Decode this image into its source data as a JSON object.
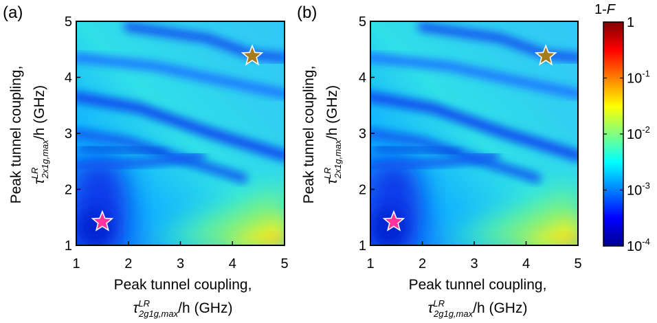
{
  "chart_data": [
    {
      "type": "heatmap",
      "panel_label": "(a)",
      "xlabel_line1": "Peak tunnel coupling,",
      "xlabel_symbol": "τ",
      "xlabel_sup": "LR",
      "xlabel_sub": "2g1g,max",
      "xlabel_tail": "/h (GHz)",
      "ylabel_line1": "Peak tunnel coupling,",
      "ylabel_symbol": "τ",
      "ylabel_sup": "LR",
      "ylabel_sub": "2x1g,max",
      "ylabel_tail": "/h (GHz)",
      "xlim": [
        1,
        5
      ],
      "ylim": [
        1,
        5
      ],
      "x_ticks": [
        "1",
        "2",
        "3",
        "4",
        "5"
      ],
      "y_ticks": [
        "1",
        "2",
        "3",
        "4",
        "5"
      ],
      "markers": [
        {
          "shape": "star",
          "color": "#ff3399",
          "x": 1.5,
          "y": 1.42
        },
        {
          "shape": "star",
          "color": "#a67c1c",
          "x": 4.38,
          "y": 4.38
        }
      ]
    },
    {
      "type": "heatmap",
      "panel_label": "(b)",
      "xlabel_line1": "Peak tunnel coupling,",
      "xlabel_symbol": "τ",
      "xlabel_sup": "LR",
      "xlabel_sub": "2g1g,max",
      "xlabel_tail": "/h (GHz)",
      "ylabel_line1": "Peak tunnel coupling,",
      "ylabel_symbol": "τ",
      "ylabel_sup": "LR",
      "ylabel_sub": "2x1g,max",
      "ylabel_tail": "/h (GHz)",
      "xlim": [
        1,
        5
      ],
      "ylim": [
        1,
        5
      ],
      "x_ticks": [
        "1",
        "2",
        "3",
        "4",
        "5"
      ],
      "y_ticks": [
        "1",
        "2",
        "3",
        "4",
        "5"
      ],
      "markers": [
        {
          "shape": "star",
          "color": "#ff3399",
          "x": 1.45,
          "y": 1.42
        },
        {
          "shape": "star",
          "color": "#a67c1c",
          "x": 4.38,
          "y": 4.38
        }
      ]
    }
  ],
  "colorbar": {
    "title": "1-",
    "title_italic": "F",
    "scale": "log",
    "range": [
      0.0001,
      1
    ],
    "ticks": [
      {
        "base": "1",
        "exp": ""
      },
      {
        "base": "10",
        "exp": "-1"
      },
      {
        "base": "10",
        "exp": "-2"
      },
      {
        "base": "10",
        "exp": "-3"
      },
      {
        "base": "10",
        "exp": "-4"
      }
    ],
    "colormap": [
      "#00008f",
      "#0000ff",
      "#0080ff",
      "#00ffff",
      "#80ff80",
      "#ffff00",
      "#ff8000",
      "#ff0000",
      "#800000"
    ]
  }
}
